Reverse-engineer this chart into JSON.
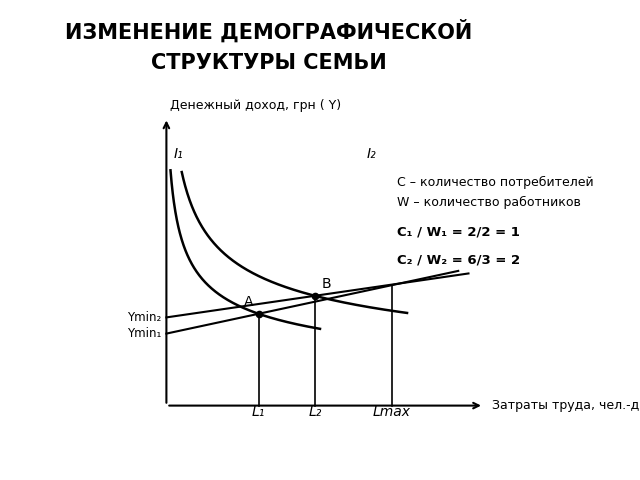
{
  "title_line1": "ИЗМЕНЕНИЕ ДЕМОГРАФИЧЕСКОЙ",
  "title_line2": "СТРУКТУРЫ СЕМЬИ",
  "ylabel": "Денежный доход, грн ( Y)",
  "xlabel": "Затраты труда, чел.-дни  (L)",
  "legend_line1": "С – количество потребителей",
  "legend_line2": "W – количество работников",
  "legend_line3": "С₁ / W₁ = 2/2 = 1",
  "legend_line4": "С₂ / W₂ = 6/3 = 2",
  "label_I1": "I₁",
  "label_I2": "I₂",
  "label_A": "A",
  "label_B": "B",
  "label_L1": "L₁",
  "label_L2": "L₂",
  "label_Lmax": "Lmax",
  "label_Ymin1": "Ymin₁",
  "label_Ymin2": "Ymin₂",
  "background_color": "#ffffff"
}
